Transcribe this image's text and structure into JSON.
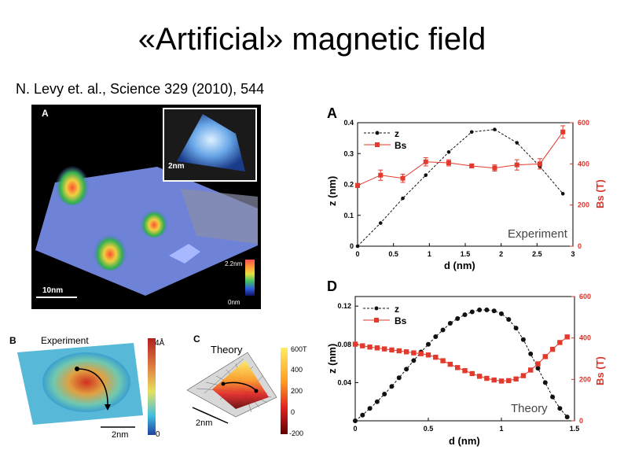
{
  "slide": {
    "title": "«Artificial» magnetic field",
    "citation": "N. Levy et. al., Science 329 (2010), 544"
  },
  "figure_images": {
    "panel_a": {
      "letter": "A",
      "inset_scale": "2nm",
      "scale": "10nm",
      "colorbar_top": "2.2nm",
      "colorbar_bottom": "0nm"
    },
    "panel_b": {
      "letter": "B",
      "title": "Experiment",
      "colorbar_top": "4Å",
      "colorbar_bottom": "0",
      "scale": "2nm"
    },
    "panel_c": {
      "letter": "C",
      "title": "Theory",
      "scale": "2nm",
      "colorbar_ticks": [
        "600T",
        "400",
        "200",
        "0",
        "-200"
      ]
    }
  },
  "colors": {
    "z_series": "#111111",
    "bs_series": "#e23a2c",
    "bs_axis": "#d9342b"
  },
  "chart_data": [
    {
      "panel": "A",
      "type": "line",
      "annotation": "Experiment",
      "xlabel": "d (nm)",
      "ylabel": "z (nm)",
      "y2label": "Bs (T)",
      "xlim": [
        0,
        3
      ],
      "ylim": [
        0,
        0.4
      ],
      "y2lim": [
        0,
        600
      ],
      "xticks": [
        "0",
        "0.5",
        "1",
        "1.5",
        "2",
        "2.5",
        "3"
      ],
      "yticks": [
        "0",
        "0.1",
        "0.2",
        "0.3",
        "0.4"
      ],
      "y2ticks": [
        "0",
        "200",
        "400",
        "600"
      ],
      "legend": {
        "z": "z",
        "bs": "Bs"
      },
      "series": [
        {
          "name": "z",
          "axis": "left",
          "x": [
            0,
            0.32,
            0.63,
            0.95,
            1.27,
            1.59,
            1.91,
            2.22,
            2.54,
            2.86
          ],
          "y": [
            0,
            0.075,
            0.155,
            0.23,
            0.305,
            0.37,
            0.378,
            0.335,
            0.258,
            0.17
          ]
        },
        {
          "name": "Bs",
          "axis": "right",
          "x": [
            0,
            0.32,
            0.63,
            0.95,
            1.27,
            1.59,
            1.91,
            2.22,
            2.54,
            2.86
          ],
          "y": [
            295,
            345,
            330,
            410,
            405,
            390,
            380,
            395,
            400,
            555
          ],
          "err": [
            10,
            25,
            20,
            20,
            15,
            10,
            15,
            25,
            25,
            30
          ]
        }
      ]
    },
    {
      "panel": "D",
      "type": "line",
      "annotation": "Theory",
      "xlabel": "d (nm)",
      "ylabel": "z (nm)",
      "y2label": "Bs (T)",
      "xlim": [
        0,
        1.5
      ],
      "ylim": [
        0,
        0.13
      ],
      "y2lim": [
        0,
        600
      ],
      "xticks": [
        "0",
        "0.5",
        "1",
        "1.5"
      ],
      "yticks": [
        "0.04",
        "0.08",
        "0.12"
      ],
      "y2ticks": [
        "0",
        "200",
        "400",
        "600"
      ],
      "legend": {
        "z": "z",
        "bs": "Bs"
      },
      "series": [
        {
          "name": "z",
          "axis": "left",
          "x": [
            0,
            0.05,
            0.1,
            0.15,
            0.2,
            0.25,
            0.3,
            0.35,
            0.4,
            0.45,
            0.5,
            0.55,
            0.6,
            0.65,
            0.7,
            0.75,
            0.8,
            0.85,
            0.9,
            0.95,
            1.0,
            1.05,
            1.1,
            1.15,
            1.2,
            1.25,
            1.3,
            1.35,
            1.4,
            1.45
          ],
          "y": [
            0,
            0.006,
            0.013,
            0.02,
            0.028,
            0.036,
            0.045,
            0.054,
            0.063,
            0.072,
            0.08,
            0.088,
            0.095,
            0.102,
            0.107,
            0.111,
            0.114,
            0.116,
            0.116,
            0.115,
            0.112,
            0.106,
            0.097,
            0.085,
            0.07,
            0.055,
            0.04,
            0.025,
            0.013,
            0.004
          ]
        },
        {
          "name": "Bs",
          "axis": "right",
          "x": [
            0,
            0.05,
            0.1,
            0.15,
            0.2,
            0.25,
            0.3,
            0.35,
            0.4,
            0.45,
            0.5,
            0.55,
            0.6,
            0.65,
            0.7,
            0.75,
            0.8,
            0.85,
            0.9,
            0.95,
            1.0,
            1.05,
            1.1,
            1.15,
            1.2,
            1.25,
            1.3,
            1.35,
            1.4,
            1.45
          ],
          "y": [
            370,
            362,
            356,
            352,
            347,
            342,
            338,
            333,
            328,
            324,
            318,
            307,
            290,
            273,
            257,
            242,
            228,
            215,
            205,
            197,
            192,
            194,
            202,
            218,
            245,
            275,
            310,
            345,
            378,
            405
          ]
        }
      ]
    }
  ]
}
